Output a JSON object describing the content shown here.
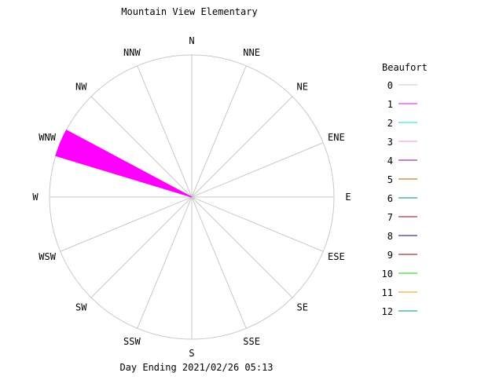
{
  "chart_data": {
    "type": "rose",
    "title": "Mountain View Elementary",
    "subtitle": "Day Ending 2021/02/26 05:13",
    "directions": [
      "N",
      "NNE",
      "NE",
      "ENE",
      "E",
      "ESE",
      "SE",
      "SSE",
      "S",
      "SSW",
      "SW",
      "WSW",
      "W",
      "WNW",
      "NW",
      "NNW"
    ],
    "grid": true,
    "legend_title": "Beaufort",
    "legend_position": "right",
    "legend": [
      {
        "label": "0",
        "color": "#c8c8c8"
      },
      {
        "label": "1",
        "color": "#ff00ff"
      },
      {
        "label": "2",
        "color": "#00e5e5"
      },
      {
        "label": "3",
        "color": "#ff88cc"
      },
      {
        "label": "4",
        "color": "#880088"
      },
      {
        "label": "5",
        "color": "#aa6600"
      },
      {
        "label": "6",
        "color": "#008888"
      },
      {
        "label": "7",
        "color": "#aa0000"
      },
      {
        "label": "8",
        "color": "#000088"
      },
      {
        "label": "9",
        "color": "#880000"
      },
      {
        "label": "10",
        "color": "#00dd00"
      },
      {
        "label": "11",
        "color": "#ee9900"
      },
      {
        "label": "12",
        "color": "#008899"
      }
    ],
    "radial_max": 100,
    "series": [
      {
        "beaufort": "1",
        "direction": "WNW",
        "value": 100
      }
    ]
  }
}
